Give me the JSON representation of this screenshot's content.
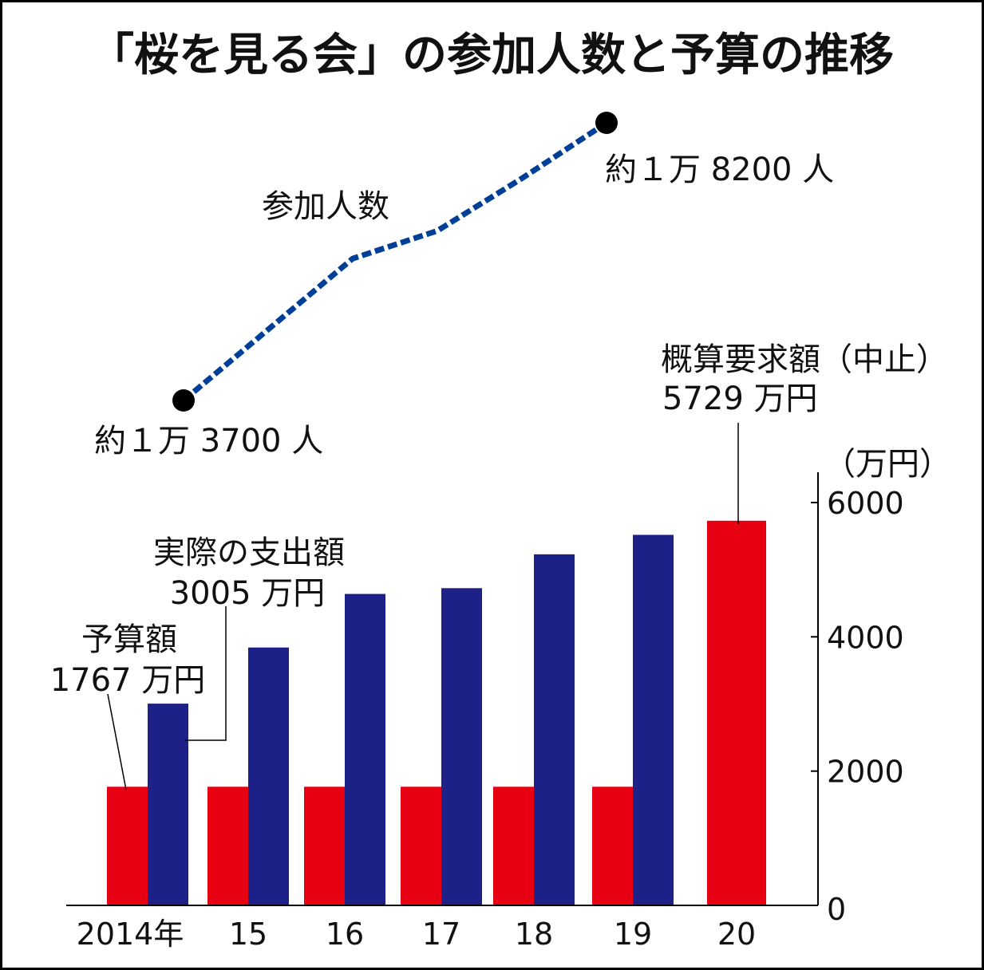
{
  "chart_data": {
    "type": "bar",
    "title": "「桜を見る会」の参加人数と予算の推移",
    "categories": [
      "2014年",
      "15",
      "16",
      "17",
      "18",
      "19",
      "20"
    ],
    "years": [
      2014,
      2015,
      2016,
      2017,
      2018,
      2019,
      2020
    ],
    "yunit": "（万円）",
    "ylim": [
      0,
      6000
    ],
    "yticks": [
      "0",
      "2000",
      "4000",
      "6000"
    ],
    "ytick_values": [
      0,
      2000,
      4000,
      6000
    ],
    "series": [
      {
        "name": "予算額",
        "color": "#e60012",
        "values": [
          1767,
          1767,
          1767,
          1767,
          1767,
          1767,
          5729
        ]
      },
      {
        "name": "実際の支出額",
        "color": "#1d2087",
        "values": [
          3005,
          3841,
          4639,
          4725,
          5229,
          5519,
          null
        ]
      }
    ],
    "line_series": {
      "name": "参加人数",
      "color": "#003f98",
      "style": "dashed",
      "years": [
        2014,
        2015,
        2016,
        2017,
        2018,
        2019
      ],
      "values": [
        13700,
        14850,
        16000,
        16450,
        17300,
        18200
      ]
    },
    "annotations": {
      "line_label": "参加人数",
      "line_start": "約１万 3700 人",
      "line_end": "約１万 8200 人",
      "budget_title": "予算額",
      "budget_value": "1767 万円",
      "actual_title": "実際の支出額",
      "actual_value": "3005 万円",
      "request_title": "概算要求額（中止）",
      "request_value": "5729 万円"
    },
    "grid": false,
    "legend": "none"
  }
}
